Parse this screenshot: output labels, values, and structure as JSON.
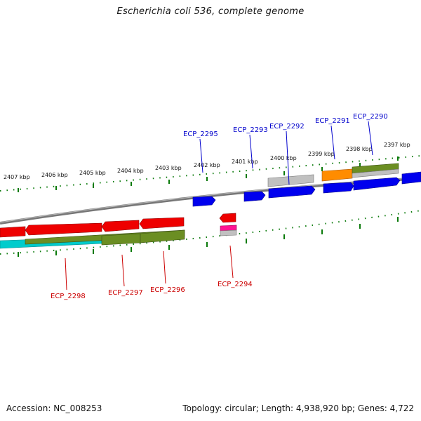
{
  "title": "Escherichia coli 536, complete genome",
  "footer": {
    "accession": "Accession: NC_008253",
    "topology": "Topology: circular; Length: 4,938,920 bp; Genes: 4,722"
  },
  "ruler": {
    "top_ticks": [
      "2407 kbp",
      "2406 kbp",
      "2405 kbp",
      "2404 kbp",
      "2403 kbp",
      "2402 kbp",
      "2401 kbp",
      "2400 kbp",
      "2399 kbp",
      "2398 kbp",
      "2397 kbp"
    ]
  },
  "genes": {
    "forward_labels": [
      "ECP_2295",
      "ECP_2293",
      "ECP_2292",
      "ECP_2291",
      "ECP_2290"
    ],
    "reverse_labels": [
      "ECP_2298",
      "ECP_2297",
      "ECP_2296",
      "ECP_2294"
    ]
  },
  "colors": {
    "forward_label": "#0000cc",
    "reverse_label": "#cc0000",
    "cds_forward": "#0000ff",
    "cds_reverse": "#ff0000",
    "backbone": "#888888",
    "tick": "#006600",
    "olive": "#6b8e23",
    "orange": "#ff8c00",
    "cyan": "#00cccc",
    "gray_feature": "#bbbbbb",
    "magenta": "#ff1493"
  }
}
